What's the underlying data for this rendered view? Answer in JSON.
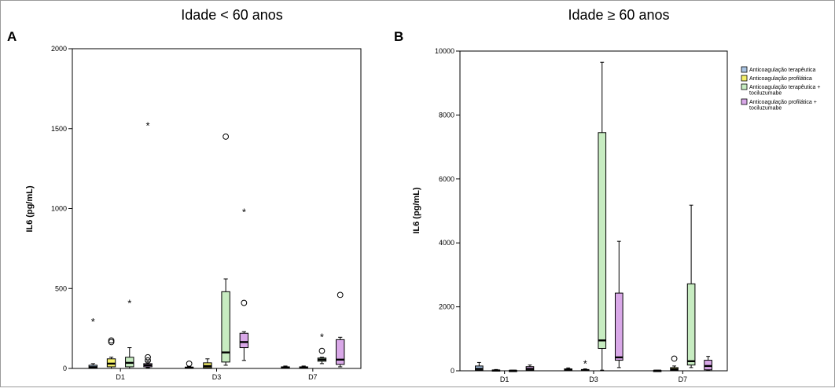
{
  "colors": {
    "Anticoagulação terapêutica": "#a9c4e3",
    "Anticoagulação profilática": "#f5f06a",
    "Anticoagulação terapêutica + tociluzumabe": "#c7ecc1",
    "Anticoagulação profilática + tociluzumabe": "#d9a8e8"
  },
  "legend": [
    {
      "lines": [
        "Anticoagulação terapêutica"
      ],
      "series": "Anticoagulação terapêutica"
    },
    {
      "lines": [
        "Anticoagulação profilática"
      ],
      "series": "Anticoagulação profilática"
    },
    {
      "lines": [
        "Anticoagulação terapêutica +",
        "tociluzumabe"
      ],
      "series": "Anticoagulação terapêutica + tociluzumabe"
    },
    {
      "lines": [
        "Anticoagulação profilática +",
        "tociluzumabe"
      ],
      "series": "Anticoagulação profilática + tociluzumabe"
    }
  ],
  "chart_data": [
    {
      "type": "box",
      "panel_label": "A",
      "title": "Idade < 60 anos",
      "ylabel": "IL6 (pg/mL)",
      "xlabel": "",
      "ylim": [
        0,
        2000
      ],
      "yticks": [
        0,
        500,
        1000,
        1500,
        2000
      ],
      "grid": false,
      "categories": [
        "D1",
        "D3",
        "D7"
      ],
      "series": [
        {
          "name": "Anticoagulação terapêutica",
          "boxes": [
            {
              "min": 0,
              "q1": 2,
              "median": 8,
              "q3": 20,
              "max": 30,
              "outliers": [],
              "extremes": [
                295
              ]
            },
            {
              "min": 0,
              "q1": 2,
              "median": 5,
              "q3": 8,
              "max": 12,
              "outliers": [
                30
              ],
              "extremes": []
            },
            {
              "min": 0,
              "q1": 2,
              "median": 5,
              "q3": 10,
              "max": 15,
              "outliers": [],
              "extremes": []
            }
          ]
        },
        {
          "name": "Anticoagulação profilática",
          "boxes": [
            {
              "min": 0,
              "q1": 10,
              "median": 30,
              "q3": 60,
              "max": 70,
              "outliers": [
                165,
                175
              ],
              "extremes": []
            },
            {
              "min": 0,
              "q1": 5,
              "median": 15,
              "q3": 35,
              "max": 60,
              "outliers": [],
              "extremes": []
            },
            {
              "min": 0,
              "q1": 2,
              "median": 5,
              "q3": 10,
              "max": 15,
              "outliers": [],
              "extremes": []
            }
          ]
        },
        {
          "name": "Anticoagulação terapêutica + tociluzumabe",
          "boxes": [
            {
              "min": 0,
              "q1": 10,
              "median": 35,
              "q3": 70,
              "max": 130,
              "outliers": [],
              "extremes": [
                410
              ]
            },
            {
              "min": 20,
              "q1": 40,
              "median": 100,
              "q3": 480,
              "max": 560,
              "outliers": [
                1450
              ],
              "extremes": []
            },
            {
              "min": 30,
              "q1": 45,
              "median": 55,
              "q3": 65,
              "max": 70,
              "outliers": [
                110
              ],
              "extremes": [
                200
              ]
            }
          ]
        },
        {
          "name": "Anticoagulação profilática + tociluzumabe",
          "boxes": [
            {
              "min": 5,
              "q1": 10,
              "median": 20,
              "q3": 30,
              "max": 45,
              "outliers": [
                50,
                70
              ],
              "extremes": [
                1520
              ]
            },
            {
              "min": 50,
              "q1": 130,
              "median": 165,
              "q3": 220,
              "max": 230,
              "outliers": [
                410
              ],
              "extremes": [
                980
              ]
            },
            {
              "min": 10,
              "q1": 25,
              "median": 55,
              "q3": 180,
              "max": 195,
              "outliers": [
                460
              ],
              "extremes": []
            }
          ]
        }
      ]
    },
    {
      "type": "box",
      "panel_label": "B",
      "title": "Idade ≥ 60 anos",
      "ylabel": "IL6 (pg/mL)",
      "xlabel": "",
      "ylim": [
        0,
        10000
      ],
      "yticks": [
        0,
        2000,
        4000,
        6000,
        8000,
        10000
      ],
      "grid": false,
      "legend_position": "right",
      "categories": [
        "D1",
        "D3",
        "D7"
      ],
      "series": [
        {
          "name": "Anticoagulação terapêutica",
          "boxes": [
            {
              "min": 0,
              "q1": 20,
              "median": 60,
              "q3": 150,
              "max": 260,
              "outliers": [],
              "extremes": []
            },
            {
              "min": 0,
              "q1": 10,
              "median": 25,
              "q3": 60,
              "max": 90,
              "outliers": [],
              "extremes": []
            },
            {
              "min": 0,
              "q1": 2,
              "median": 5,
              "q3": 10,
              "max": 15,
              "outliers": [],
              "extremes": []
            }
          ]
        },
        {
          "name": "Anticoagulação profilática",
          "boxes": [
            {
              "min": 0,
              "q1": 5,
              "median": 10,
              "q3": 25,
              "max": 40,
              "outliers": [],
              "extremes": []
            },
            {
              "min": 0,
              "q1": 10,
              "median": 20,
              "q3": 40,
              "max": 60,
              "outliers": [],
              "extremes": [
                230
              ]
            },
            {
              "min": 0,
              "q1": 20,
              "median": 50,
              "q3": 100,
              "max": 150,
              "outliers": [
                380
              ],
              "extremes": []
            }
          ]
        },
        {
          "name": "Anticoagulação terapêutica + tociluzumabe",
          "boxes": [
            {
              "min": 0,
              "q1": 2,
              "median": 5,
              "q3": 10,
              "max": 15,
              "outliers": [],
              "extremes": []
            },
            {
              "min": 20,
              "q1": 700,
              "median": 950,
              "q3": 7450,
              "max": 9650,
              "outliers": [],
              "extremes": []
            },
            {
              "min": 100,
              "q1": 180,
              "median": 300,
              "q3": 2720,
              "max": 5180,
              "outliers": [],
              "extremes": []
            }
          ]
        },
        {
          "name": "Anticoagulação profilática + tociluzumabe",
          "boxes": [
            {
              "min": 0,
              "q1": 20,
              "median": 60,
              "q3": 130,
              "max": 180,
              "outliers": [],
              "extremes": []
            },
            {
              "min": 100,
              "q1": 330,
              "median": 420,
              "q3": 2430,
              "max": 4050,
              "outliers": [],
              "extremes": []
            },
            {
              "min": 10,
              "q1": 30,
              "median": 150,
              "q3": 330,
              "max": 450,
              "outliers": [],
              "extremes": []
            }
          ]
        }
      ]
    }
  ]
}
